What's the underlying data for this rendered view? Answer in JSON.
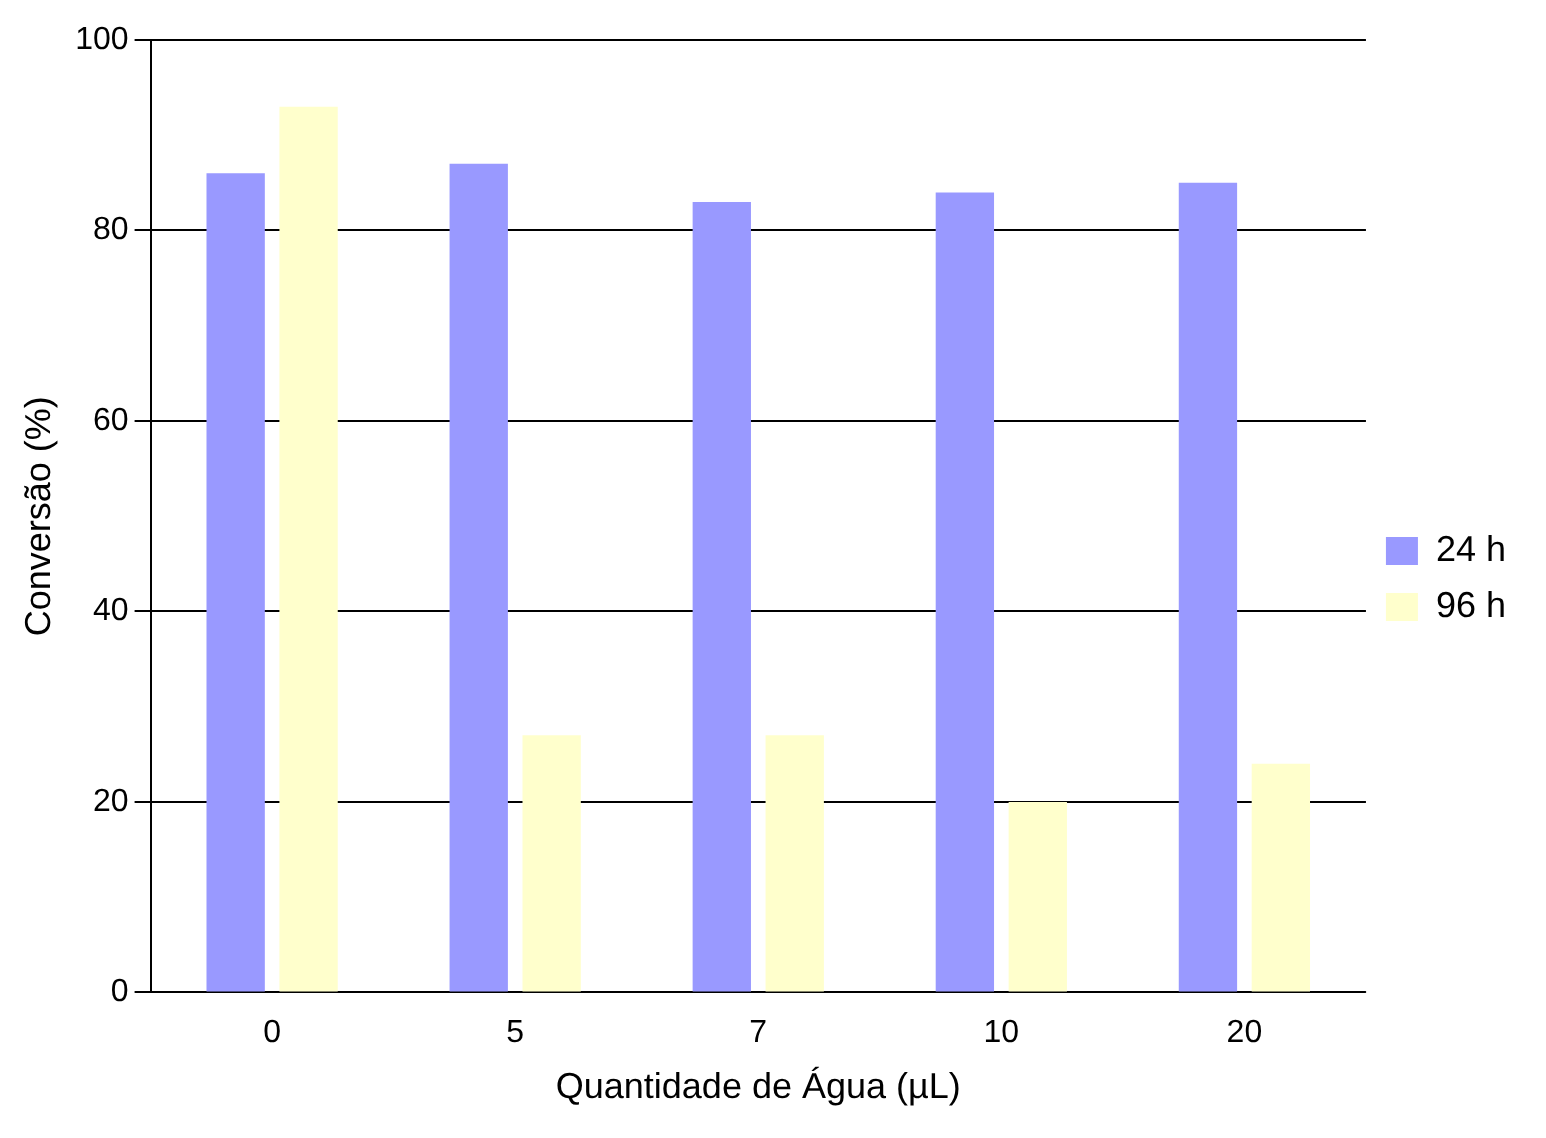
{
  "chart_data": {
    "type": "bar",
    "xlabel": "Quantidade de Água (µL)",
    "ylabel": "Conversão (%)",
    "categories": [
      "0",
      "5",
      "7",
      "10",
      "20"
    ],
    "series": [
      {
        "name": "24 h",
        "color": "#9999ff",
        "values": [
          86,
          87,
          83,
          84,
          85
        ]
      },
      {
        "name": "96 h",
        "color": "#ffffcc",
        "values": [
          93,
          27,
          27,
          20,
          24
        ]
      }
    ],
    "ylim": [
      0,
      100
    ],
    "yticks": [
      0,
      20,
      40,
      60,
      80,
      100
    ],
    "grid": "y",
    "legend": "right"
  }
}
